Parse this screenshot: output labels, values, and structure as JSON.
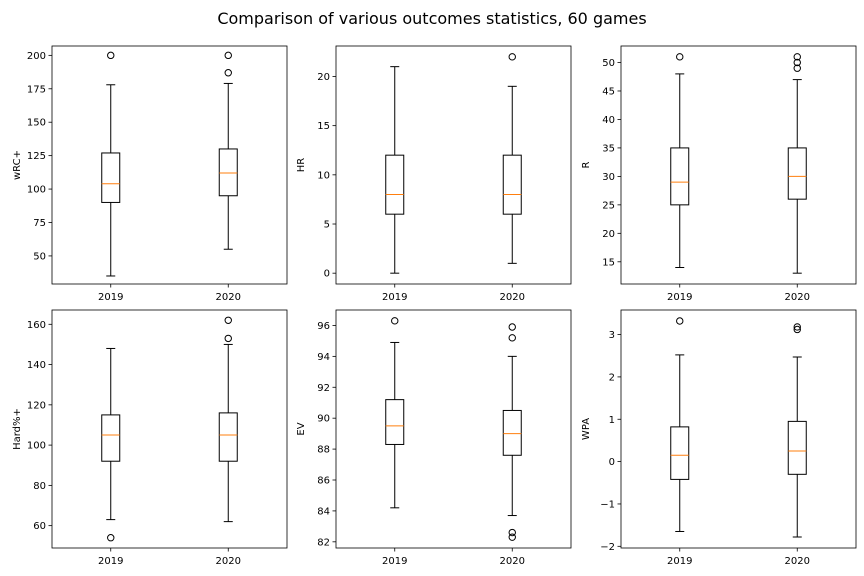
{
  "figure": {
    "suptitle": "Comparison of various outcomes statistics, 60 games"
  },
  "colors": {
    "median": "#ff7f0e",
    "box": "#000000",
    "background": "#ffffff"
  },
  "chart_data": [
    {
      "type": "box",
      "ylabel": "wRC+",
      "categories": [
        "2019",
        "2020"
      ],
      "ylim": [
        29,
        207
      ],
      "yticks": [
        50,
        75,
        100,
        125,
        150,
        175,
        200
      ],
      "boxes": [
        {
          "name": "2019",
          "whisker_low": 35,
          "q1": 90,
          "median": 104,
          "q3": 127,
          "whisker_high": 178,
          "fliers": [
            200
          ]
        },
        {
          "name": "2020",
          "whisker_low": 55,
          "q1": 95,
          "median": 112,
          "q3": 130,
          "whisker_high": 179,
          "fliers": [
            187,
            200
          ]
        }
      ]
    },
    {
      "type": "box",
      "ylabel": "HR",
      "categories": [
        "2019",
        "2020"
      ],
      "ylim": [
        -1.1,
        23.1
      ],
      "yticks": [
        0,
        5,
        10,
        15,
        20
      ],
      "boxes": [
        {
          "name": "2019",
          "whisker_low": 0,
          "q1": 6,
          "median": 8,
          "q3": 12,
          "whisker_high": 21,
          "fliers": []
        },
        {
          "name": "2020",
          "whisker_low": 1,
          "q1": 6,
          "median": 8,
          "q3": 12,
          "whisker_high": 19,
          "fliers": [
            22
          ]
        }
      ]
    },
    {
      "type": "box",
      "ylabel": "R",
      "categories": [
        "2019",
        "2020"
      ],
      "ylim": [
        11.1,
        52.9
      ],
      "yticks": [
        15,
        20,
        25,
        30,
        35,
        40,
        45,
        50
      ],
      "boxes": [
        {
          "name": "2019",
          "whisker_low": 14,
          "q1": 25,
          "median": 29,
          "q3": 35,
          "whisker_high": 48,
          "fliers": [
            51
          ]
        },
        {
          "name": "2020",
          "whisker_low": 13,
          "q1": 26,
          "median": 30,
          "q3": 35,
          "whisker_high": 47,
          "fliers": [
            49,
            50,
            51
          ]
        }
      ]
    },
    {
      "type": "box",
      "ylabel": "Hard%+",
      "categories": [
        "2019",
        "2020"
      ],
      "ylim": [
        48.9,
        167.1
      ],
      "yticks": [
        60,
        80,
        100,
        120,
        140,
        160
      ],
      "boxes": [
        {
          "name": "2019",
          "whisker_low": 63,
          "q1": 92,
          "median": 105,
          "q3": 115,
          "whisker_high": 148,
          "fliers": [
            54
          ]
        },
        {
          "name": "2020",
          "whisker_low": 62,
          "q1": 92,
          "median": 105,
          "q3": 116,
          "whisker_high": 150,
          "fliers": [
            153,
            162
          ]
        }
      ]
    },
    {
      "type": "box",
      "ylabel": "EV",
      "categories": [
        "2019",
        "2020"
      ],
      "ylim": [
        81.6,
        97.0
      ],
      "yticks": [
        82,
        84,
        86,
        88,
        90,
        92,
        94,
        96
      ],
      "boxes": [
        {
          "name": "2019",
          "whisker_low": 84.2,
          "q1": 88.3,
          "median": 89.5,
          "q3": 91.2,
          "whisker_high": 94.9,
          "fliers": [
            96.3
          ]
        },
        {
          "name": "2020",
          "whisker_low": 83.7,
          "q1": 87.6,
          "median": 89.0,
          "q3": 90.5,
          "whisker_high": 94.0,
          "fliers": [
            82.3,
            82.6,
            95.2,
            95.9
          ]
        }
      ]
    },
    {
      "type": "box",
      "ylabel": "WPA",
      "categories": [
        "2019",
        "2020"
      ],
      "ylim": [
        -2.04,
        3.58
      ],
      "yticks": [
        -2,
        -1,
        0,
        1,
        2,
        3
      ],
      "yticklabels": [
        "−2",
        "−1",
        "0",
        "1",
        "2",
        "3"
      ],
      "boxes": [
        {
          "name": "2019",
          "whisker_low": -1.65,
          "q1": -0.42,
          "median": 0.15,
          "q3": 0.82,
          "whisker_high": 2.52,
          "fliers": [
            3.32
          ]
        },
        {
          "name": "2020",
          "whisker_low": -1.78,
          "q1": -0.3,
          "median": 0.25,
          "q3": 0.95,
          "whisker_high": 2.47,
          "fliers": [
            3.12,
            3.18
          ]
        }
      ]
    }
  ]
}
